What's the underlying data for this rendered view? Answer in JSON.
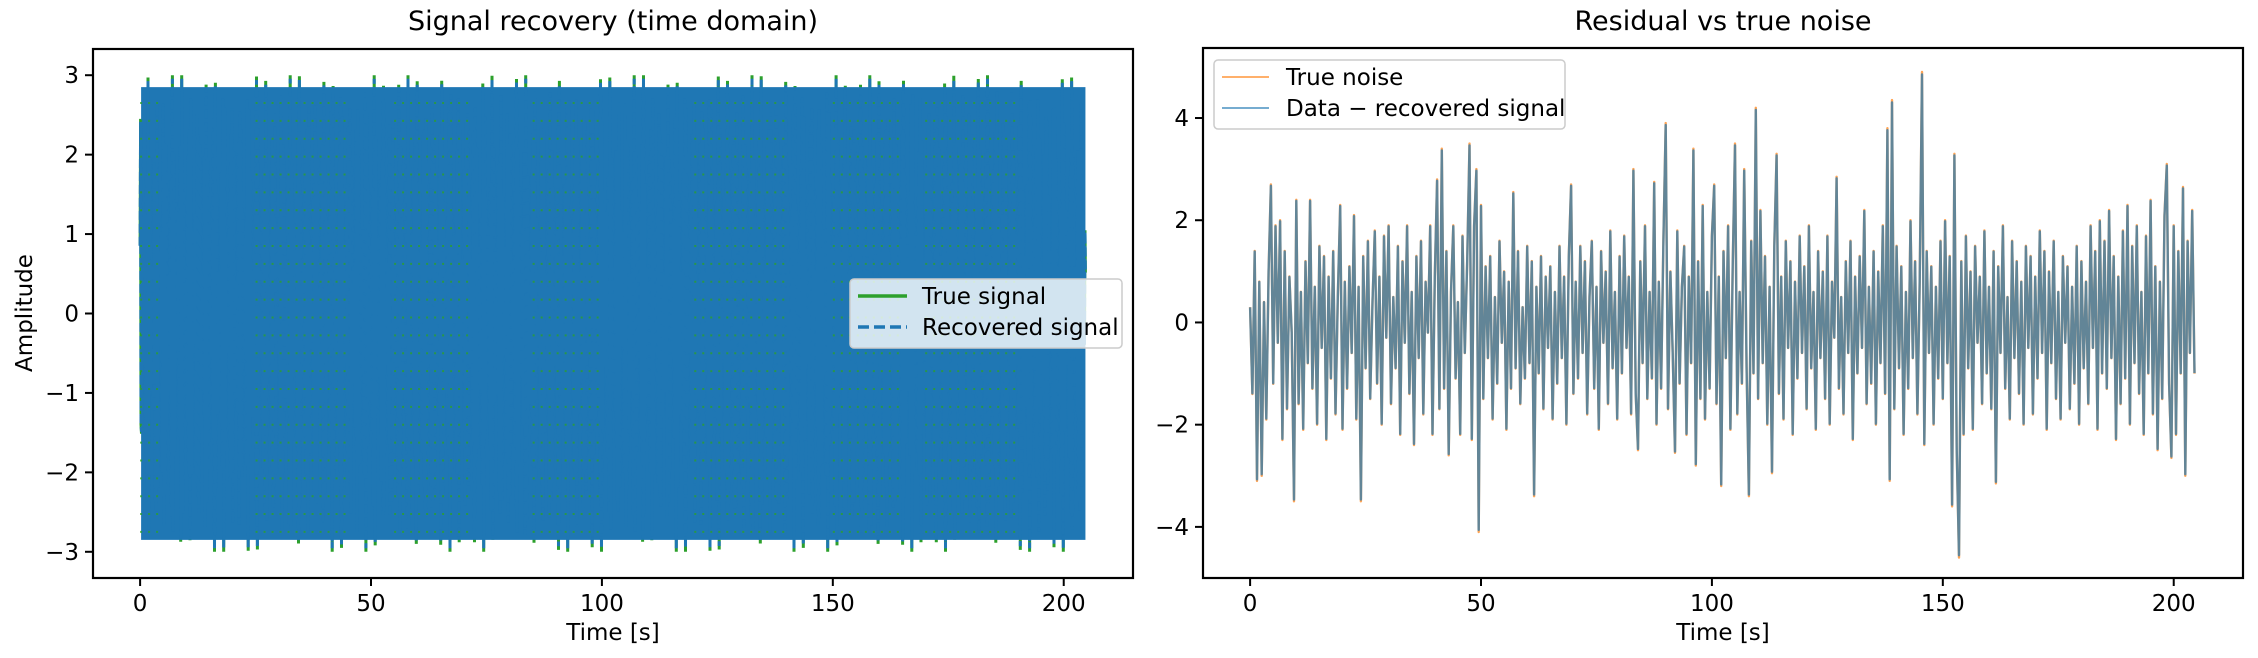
{
  "chart_data": [
    {
      "type": "line",
      "title": "Signal recovery (time domain)",
      "xlabel": "Time [s]",
      "ylabel": "Amplitude",
      "xlim": [
        -10.2,
        215
      ],
      "ylim": [
        -3.33,
        3.33
      ],
      "x_ticks": [
        0,
        50,
        100,
        150,
        200
      ],
      "y_ticks": [
        -3,
        -2,
        -1,
        0,
        1,
        2,
        3
      ],
      "x_range": [
        0,
        204.7
      ],
      "grid": false,
      "legend_position": "center-right",
      "series": [
        {
          "name": "True signal",
          "color": "#2ca02c",
          "style": "solid",
          "amplitude": 3
        },
        {
          "name": "Recovered signal",
          "color": "#1f77b4",
          "style": "dashed",
          "amplitude": 3
        }
      ]
    },
    {
      "type": "line",
      "title": "Residual vs true noise",
      "xlabel": "Time [s]",
      "ylabel": "",
      "xlim": [
        -10.2,
        215
      ],
      "ylim": [
        -5.0,
        5.37
      ],
      "x_ticks": [
        0,
        50,
        100,
        150,
        200
      ],
      "y_ticks": [
        -4,
        -2,
        0,
        2,
        4
      ],
      "grid": false,
      "legend_position": "top-left",
      "x_start": 0,
      "x_step": 0.5,
      "series": [
        {
          "name": "True noise",
          "color": "#ff7f0e"
        },
        {
          "name": "Data − recovered signal",
          "color": "#1f77b4"
        }
      ],
      "values": [
        0.3,
        -1.4,
        1.4,
        -3.1,
        0.8,
        -3.0,
        0.4,
        -1.9,
        1.0,
        2.7,
        -1.2,
        1.9,
        -0.4,
        2.0,
        -2.3,
        1.4,
        -1.7,
        0.9,
        -0.2,
        -3.5,
        2.4,
        -1.6,
        0.6,
        -2.1,
        1.2,
        -0.8,
        2.4,
        -1.3,
        0.7,
        -2.0,
        1.5,
        -0.5,
        1.3,
        -2.3,
        0.9,
        -1.1,
        1.4,
        -1.8,
        0.5,
        2.3,
        -2.1,
        0.8,
        -1.3,
        1.1,
        -0.6,
        2.1,
        -1.9,
        0.7,
        -3.5,
        1.3,
        -0.9,
        1.6,
        -1.5,
        0.4,
        1.8,
        -1.2,
        0.9,
        -2.0,
        1.7,
        -0.3,
        1.9,
        -1.6,
        0.5,
        -0.9,
        1.5,
        -2.2,
        1.2,
        -0.4,
        1.9,
        -1.4,
        0.6,
        -2.4,
        1.3,
        -0.7,
        1.6,
        -1.8,
        0.8,
        -0.2,
        1.9,
        -2.2,
        0.9,
        2.8,
        -1.7,
        3.4,
        -1.3,
        1.4,
        -2.6,
        0.6,
        1.9,
        -1.1,
        0.4,
        -2.2,
        1.7,
        -0.6,
        1.2,
        3.5,
        -2.3,
        1.9,
        3.0,
        -4.1,
        2.3,
        -1.5,
        1.1,
        -0.7,
        1.3,
        -1.9,
        0.5,
        -1.2,
        1.6,
        -0.4,
        1.0,
        -2.1,
        0.8,
        -1.3,
        2.55,
        -0.9,
        1.4,
        -1.6,
        0.3,
        -1.1,
        1.5,
        -0.8,
        1.2,
        -3.4,
        0.7,
        -1.0,
        1.3,
        -1.7,
        0.9,
        -0.5,
        1.1,
        -1.9,
        0.6,
        -1.2,
        1.5,
        -0.7,
        0.9,
        -2.0,
        1.3,
        2.7,
        -1.4,
        0.8,
        -1.1,
        1.5,
        -0.6,
        1.2,
        -1.8,
        0.5,
        1.6,
        -1.3,
        0.7,
        -2.1,
        1.4,
        -0.4,
        1.0,
        -1.6,
        1.8,
        -0.9,
        0.6,
        -1.9,
        1.3,
        -1.0,
        1.7,
        -0.5,
        0.9,
        -1.8,
        3.0,
        -1.4,
        -2.5,
        1.2,
        -0.8,
        1.9,
        -1.5,
        0.6,
        -1.1,
        2.75,
        -2.0,
        0.8,
        -1.3,
        1.6,
        3.9,
        -1.7,
        1.0,
        -0.6,
        -2.55,
        1.8,
        -1.2,
        0.7,
        1.5,
        -2.2,
        0.9,
        -0.8,
        3.4,
        -2.8,
        1.2,
        -1.5,
        2.3,
        -1.9,
        0.6,
        -1.3,
        1.7,
        2.7,
        -1.6,
        0.9,
        -3.2,
        1.4,
        -0.7,
        1.9,
        -2.1,
        1.1,
        3.5,
        -1.8,
        0.6,
        -1.2,
        3.0,
        -0.9,
        -3.4,
        1.6,
        -1.0,
        4.2,
        -1.5,
        2.2,
        -0.8,
        1.3,
        -2.0,
        0.7,
        -2.95,
        1.5,
        3.3,
        -1.4,
        0.9,
        -1.9,
        1.6,
        -0.5,
        1.2,
        -2.2,
        0.8,
        -1.1,
        1.7,
        -0.6,
        1.1,
        -1.7,
        1.9,
        -0.9,
        0.6,
        -2.1,
        1.4,
        -0.7,
        1.0,
        -1.5,
        1.7,
        -2.0,
        0.8,
        -0.3,
        2.85,
        -1.3,
        0.5,
        -1.8,
        1.2,
        -0.6,
        1.6,
        -2.3,
        0.9,
        -1.0,
        1.3,
        -0.5,
        2.2,
        -1.6,
        0.7,
        -1.2,
        1.4,
        -2.0,
        1.0,
        -0.8,
        1.9,
        -1.4,
        3.8,
        -3.1,
        4.35,
        -1.7,
        1.5,
        -0.9,
        1.1,
        -2.2,
        0.6,
        -1.3,
        2.0,
        -0.7,
        1.2,
        -1.8,
        0.8,
        4.9,
        -2.4,
        1.4,
        -0.6,
        1.1,
        -2.0,
        0.7,
        -1.1,
        1.6,
        -1.5,
        2.0,
        -0.8,
        1.3,
        -3.6,
        3.3,
        -2.5,
        -4.6,
        1.2,
        -2.2,
        1.7,
        -0.9,
        1.0,
        -2.1,
        1.5,
        -0.4,
        0.9,
        -1.6,
        1.8,
        -1.0,
        0.7,
        -1.7,
        1.4,
        -3.15,
        1.1,
        -0.6,
        1.9,
        -1.3,
        0.5,
        -1.9,
        1.6,
        -0.7,
        1.2,
        -1.4,
        0.8,
        -2.0,
        1.5,
        -0.5,
        1.3,
        -1.8,
        0.9,
        -1.1,
        1.8,
        -0.6,
        1.4,
        -2.1,
        1.0,
        -0.8,
        1.6,
        -1.5,
        0.6,
        -1.9,
        1.3,
        -0.4,
        1.1,
        -1.7,
        0.7,
        -1.2,
        1.5,
        -2.0,
        1.2,
        -0.9,
        0.8,
        -1.6,
        1.9,
        -0.5,
        1.4,
        -2.1,
        2.0,
        -1.0,
        1.6,
        -1.3,
        2.2,
        -0.7,
        1.3,
        -2.3,
        0.9,
        -1.6,
        1.8,
        -1.1,
        2.3,
        -2.0,
        1.5,
        -0.8,
        1.9,
        -1.4,
        0.6,
        -2.2,
        1.7,
        -1.0,
        2.4,
        -1.8,
        1.1,
        -2.5,
        0.8,
        -1.5,
        2.1,
        3.1,
        -1.2,
        -2.65,
        1.9,
        -2.2,
        1.4,
        -1.0,
        2.65,
        -3.0,
        1.6,
        -0.6,
        2.2,
        -1.0
      ]
    }
  ]
}
